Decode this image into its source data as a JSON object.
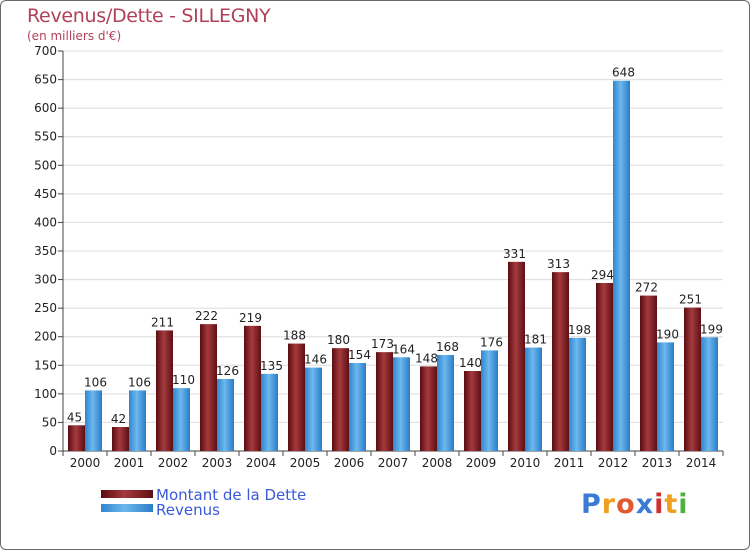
{
  "chart_data": {
    "type": "bar",
    "title": "Revenus/Dette - SILLEGNY",
    "subtitle": "(en milliers d'€)",
    "xlabel": "",
    "ylabel": "",
    "categories": [
      "2000",
      "2001",
      "2002",
      "2003",
      "2004",
      "2005",
      "2006",
      "2007",
      "2008",
      "2009",
      "2010",
      "2011",
      "2012",
      "2013",
      "2014"
    ],
    "series": [
      {
        "name": "Montant de la Dette",
        "color": "#7a1c20",
        "values": [
          45,
          42,
          211,
          222,
          219,
          188,
          180,
          173,
          148,
          140,
          331,
          313,
          294,
          272,
          251
        ]
      },
      {
        "name": "Revenus",
        "color": "#3a93d8",
        "values": [
          106,
          106,
          110,
          126,
          135,
          146,
          154,
          164,
          168,
          176,
          181,
          198,
          648,
          190,
          199
        ]
      }
    ],
    "ylim": [
      0,
      700
    ],
    "yticks": [
      0,
      50,
      100,
      150,
      200,
      250,
      300,
      350,
      400,
      450,
      500,
      550,
      600,
      650,
      700
    ],
    "grid": true,
    "legend_position": "bottom-left"
  },
  "logo": {
    "letters": [
      "P",
      "r",
      "o",
      "x",
      "i",
      "t",
      "i"
    ],
    "colors": [
      "#3a7bd5",
      "#f0a020",
      "#e05a30",
      "#3a7bd5",
      "#d03030",
      "#f0a020",
      "#50b040"
    ]
  }
}
